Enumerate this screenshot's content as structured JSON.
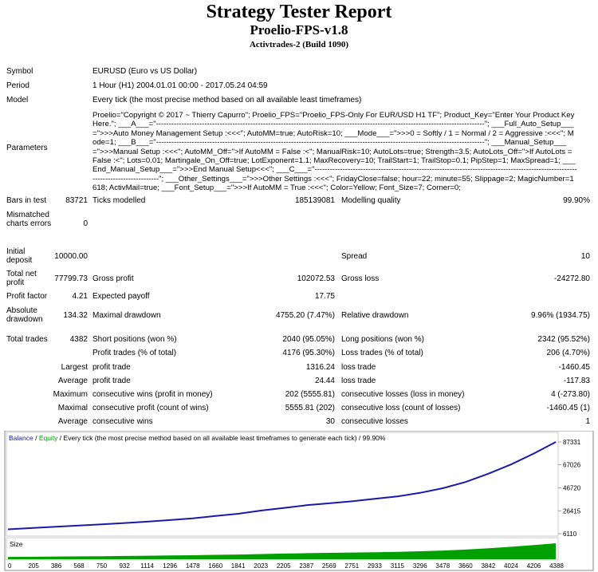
{
  "header": {
    "title": "Strategy Tester Report",
    "subtitle": "Proelio-FPS-v1.8",
    "build": "Activtrades-2 (Build 1090)"
  },
  "info": {
    "symbol_label": "Symbol",
    "symbol_value": "EURUSD (Euro vs US Dollar)",
    "period_label": "Period",
    "period_value": "1 Hour (H1) 2004.01.01 00:00 - 2017.05.24 04:59",
    "model_label": "Model",
    "model_value": "Every tick (the most precise method based on all available least timeframes)",
    "parameters_label": "Parameters",
    "parameters_value": "Proelio=\"Copyright © 2017 ~ Thierry Capurro\"; Proelio_FPS=\"Proelio_FPS-Only For EUR/USD H1 TF\"; Product_Key=\"Enter Your Product Key Here.\"; ___A___=\"---------------------------------------------------------------------------------------------------------------------------------\"; ___Full_Auto_Setup___=\">>>Auto Money Management Setup :<<<\"; AutoMM=true; AutoRisk=10; ___Mode___=\">>>0 = Softly / 1 = Normal / 2 = Aggressive :<<<\"; Mode=1; ___B___=\"---------------------------------------------------------------------------------------------------------------------------------\"; ___Manual_Setup___=\">>>Manual Setup :<<<\"; AutoMM_Off=\">If AutoMM = False :<\"; ManualRisk=10; AutoLots=true; Strength=3.5; AutoLots_Off=\">If AutoLots = False :<\"; Lots=0.01; Martingale_On_Off=true; LotExponent=1.1; MaxRecovery=10; TrailStart=1; TrailStop=0.1; PipStep=1; MaxSpread=1; ___End_Manual_Setup___=\">>>End Manual Setup<<<\"; ___C___=\"---------------------------------------------------------------------------------------------------------------------------------\"; ___Other_Settings___=\">>>Other Settings :<<<\"; FridayClose=false; hour=22; minute=55; Slippage=2; MagicNumber=1618; ActivMail=true; ___Font_Setup___=\">>>If AutoMM = True :<<<\"; Color=Yellow; Font_Size=7; Corner=0;"
  },
  "stats": {
    "bars_label": "Bars in test",
    "bars_value": "83721",
    "ticks_label": "Ticks modelled",
    "ticks_value": "185139081",
    "quality_label": "Modelling quality",
    "quality_value": "99.90%",
    "mismatch_label": "Mismatched charts errors",
    "mismatch_value": "0",
    "deposit_label": "Initial deposit",
    "deposit_value": "10000.00",
    "spread_label": "Spread",
    "spread_value": "10",
    "netprofit_label": "Total net profit",
    "netprofit_value": "77799.73",
    "grossprofit_label": "Gross profit",
    "grossprofit_value": "102072.53",
    "grossloss_label": "Gross loss",
    "grossloss_value": "-24272.80",
    "pf_label": "Profit factor",
    "pf_value": "4.21",
    "ep_label": "Expected payoff",
    "ep_value": "17.75",
    "absdd_label": "Absolute drawdown",
    "absdd_value": "134.32",
    "maxdd_label": "Maximal drawdown",
    "maxdd_value": "4755.20 (7.47%)",
    "reldd_label": "Relative drawdown",
    "reldd_value": "9.96% (1934.75)",
    "trades_label": "Total trades",
    "trades_value": "4382",
    "short_label": "Short positions (won %)",
    "short_value": "2040 (95.05%)",
    "long_label": "Long positions (won %)",
    "long_value": "2342 (95.52%)",
    "pt_label": "Profit trades (% of total)",
    "pt_value": "4176 (95.30%)",
    "lt_label": "Loss trades (% of total)",
    "lt_value": "206 (4.70%)",
    "largest_label": "Largest",
    "largest_p_label": "profit trade",
    "largest_p_value": "1316.24",
    "largest_l_label": "loss trade",
    "largest_l_value": "-1460.45",
    "average_label": "Average",
    "average_p_label": "profit trade",
    "average_p_value": "24.44",
    "average_l_label": "loss trade",
    "average_l_value": "-117.83",
    "maximum_label": "Maximum",
    "maximum_w_label": "consecutive wins (profit in money)",
    "maximum_w_value": "202 (5555.81)",
    "maximum_l_label": "consecutive losses (loss in money)",
    "maximum_l_value": "4 (-273.80)",
    "maximal_label": "Maximal",
    "maximal_w_label": "consecutive profit (count of wins)",
    "maximal_w_value": "5555.81 (202)",
    "maximal_l_label": "consecutive loss (count of losses)",
    "maximal_l_value": "-1460.45 (1)",
    "avg2_label": "Average",
    "avg2_w_label": "consecutive wins",
    "avg2_w_value": "30",
    "avg2_l_label": "consecutive losses",
    "avg2_l_value": "1"
  },
  "chart_data": {
    "type": "line",
    "legend": {
      "balance": "Balance",
      "slash": " / ",
      "equity": "Equity",
      "rest": " / Every tick (the most precise method based on all available least timeframes to generate each tick) / 99.90%"
    },
    "colors": {
      "balance": "#1a1aa6",
      "equity": "#00a000",
      "size": "#00a000"
    },
    "y_ticks": [
      87331,
      67026,
      46720,
      26415,
      6110
    ],
    "x_ticks": [
      0,
      205,
      386,
      568,
      750,
      932,
      1114,
      1296,
      1478,
      1660,
      1841,
      2023,
      2205,
      2387,
      2569,
      2751,
      2933,
      3115,
      3296,
      3478,
      3660,
      3842,
      4024,
      4206,
      4388
    ],
    "size_label": "Size",
    "series": [
      {
        "name": "Balance",
        "x": [
          0,
          205,
          386,
          568,
          750,
          932,
          1114,
          1296,
          1478,
          1660,
          1841,
          2023,
          2205,
          2387,
          2569,
          2751,
          2933,
          3115,
          3296,
          3478,
          3660,
          3842,
          4024,
          4206,
          4382
        ],
        "values": [
          10000,
          11200,
          12300,
          13300,
          14400,
          15600,
          16800,
          18200,
          19700,
          21800,
          23800,
          26600,
          28900,
          31300,
          33000,
          34800,
          37000,
          39100,
          42300,
          46400,
          51900,
          59200,
          67400,
          77100,
          87331
        ]
      }
    ],
    "ylim": [
      6110,
      87331
    ]
  }
}
